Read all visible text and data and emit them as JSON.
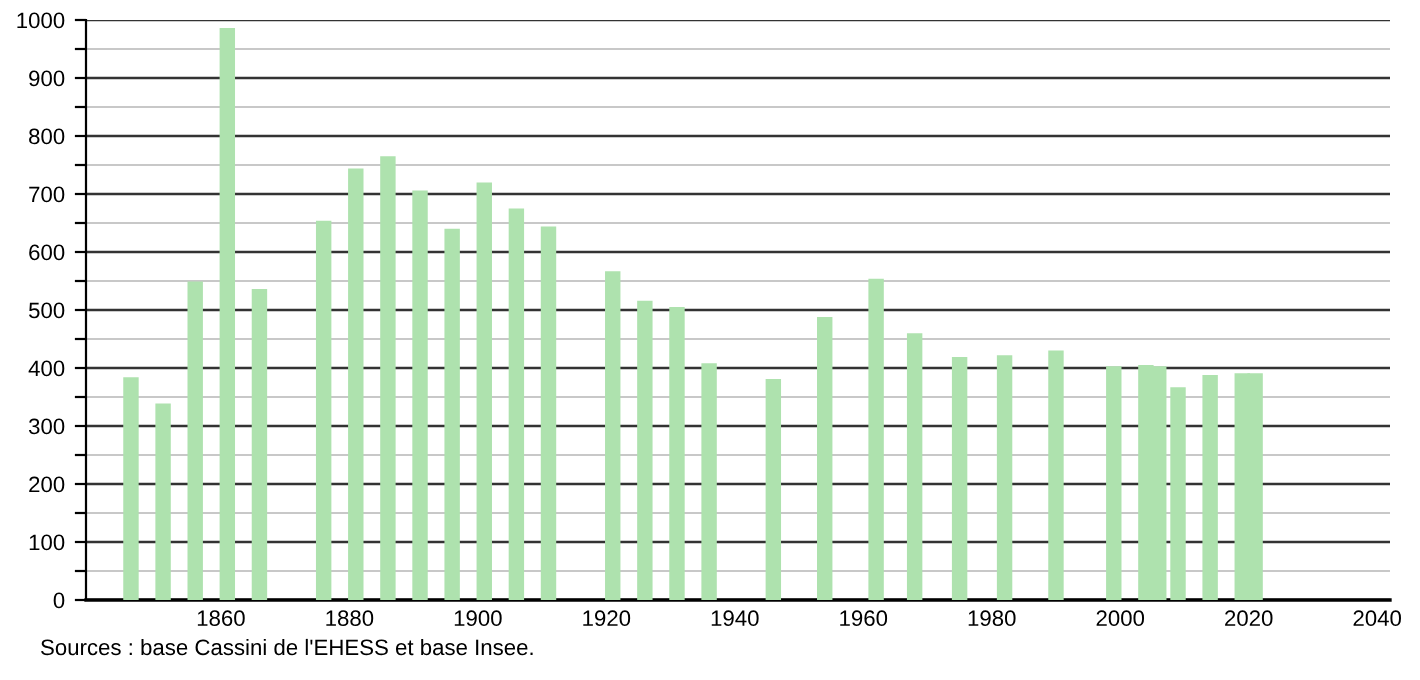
{
  "chart_data": {
    "type": "bar",
    "x": [
      1846,
      1851,
      1856,
      1861,
      1866,
      1876,
      1881,
      1886,
      1891,
      1896,
      1901,
      1906,
      1911,
      1921,
      1926,
      1931,
      1936,
      1946,
      1954,
      1962,
      1968,
      1975,
      1982,
      1990,
      1999,
      2004,
      2006,
      2009,
      2014,
      2019,
      2021
    ],
    "values": [
      384,
      339,
      549,
      986,
      536,
      654,
      744,
      765,
      706,
      640,
      720,
      675,
      644,
      567,
      516,
      505,
      408,
      381,
      488,
      554,
      460,
      419,
      422,
      430,
      403,
      405,
      403,
      367,
      388,
      391,
      391
    ],
    "color": "#aee2ae",
    "xlim": [
      1839,
      2042
    ],
    "xticks": [
      1860,
      1880,
      1900,
      1920,
      1940,
      1960,
      1980,
      2000,
      2020,
      2040
    ],
    "ylim": [
      0,
      1000
    ],
    "yticks": [
      0,
      {
        "value": 50,
        "label": null
      },
      100,
      {
        "value": 150,
        "label": null
      },
      200,
      {
        "value": 250,
        "label": null
      },
      300,
      {
        "value": 350,
        "label": null
      },
      400,
      {
        "value": 450,
        "label": null
      },
      500,
      {
        "value": 550,
        "label": null
      },
      600,
      {
        "value": 650,
        "label": null
      },
      700,
      {
        "value": 750,
        "label": null
      },
      800,
      {
        "value": 850,
        "label": null
      },
      900,
      {
        "value": 950,
        "label": null
      },
      1000
    ],
    "grid": "y",
    "annotations": [
      "Sources : base Cassini de l'EHESS et base Insee."
    ]
  }
}
